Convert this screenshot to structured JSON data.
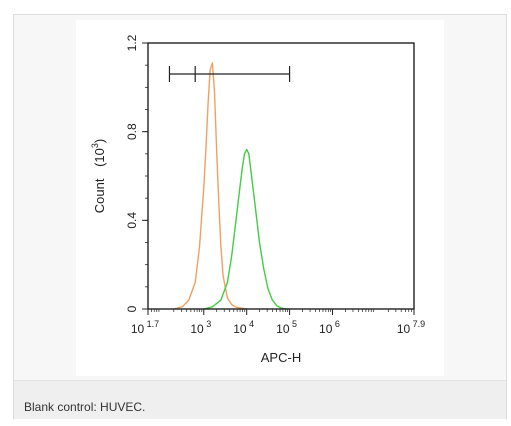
{
  "caption": "Blank control: HUVEC.",
  "chart_data": {
    "type": "line",
    "xlabel": "APC-H",
    "ylabel_main": "Count",
    "ylabel_unit": "(10",
    "ylabel_unit_exp": "3",
    "ylabel_unit_close": ")",
    "x_scale": "log10",
    "xlim_log10": [
      1.7,
      7.9
    ],
    "ylim": [
      0,
      1.2
    ],
    "x_ticks": [
      {
        "base": "10",
        "exp": "1.7",
        "log": 1.7
      },
      {
        "base": "10",
        "exp": "3",
        "log": 3
      },
      {
        "base": "10",
        "exp": "4",
        "log": 4
      },
      {
        "base": "10",
        "exp": "5",
        "log": 5
      },
      {
        "base": "10",
        "exp": "6",
        "log": 6
      },
      {
        "base": "10",
        "exp": "7.9",
        "log": 7.9
      }
    ],
    "y_ticks": [
      {
        "label": "0",
        "value": 0
      },
      {
        "label": "0.4",
        "value": 0.4
      },
      {
        "label": "0.8",
        "value": 0.8
      },
      {
        "label": "1.2",
        "value": 1.2
      }
    ],
    "gate": {
      "start_log10": 2.2,
      "mid_log10": 2.8,
      "end_log10": 5.0,
      "y": 1.06
    },
    "series": [
      {
        "color": "#f0a060",
        "x_log10": [
          2.3,
          2.5,
          2.65,
          2.8,
          2.9,
          3.0,
          3.05,
          3.1,
          3.15,
          3.2,
          3.25,
          3.3,
          3.35,
          3.4,
          3.45,
          3.55,
          3.65,
          3.75,
          3.9,
          4.0
        ],
        "y": [
          0,
          0.01,
          0.04,
          0.12,
          0.28,
          0.55,
          0.72,
          0.93,
          1.08,
          1.11,
          0.98,
          0.72,
          0.48,
          0.28,
          0.15,
          0.05,
          0.02,
          0.008,
          0.003,
          0
        ]
      },
      {
        "color": "#44cc44",
        "x_log10": [
          3.0,
          3.2,
          3.4,
          3.55,
          3.65,
          3.75,
          3.85,
          3.9,
          3.95,
          4.0,
          4.05,
          4.1,
          4.2,
          4.3,
          4.4,
          4.5,
          4.6,
          4.7,
          4.8,
          4.9,
          5.0
        ],
        "y": [
          0,
          0.01,
          0.04,
          0.12,
          0.24,
          0.4,
          0.56,
          0.64,
          0.7,
          0.72,
          0.7,
          0.62,
          0.46,
          0.3,
          0.18,
          0.09,
          0.04,
          0.015,
          0.005,
          0.001,
          0
        ]
      }
    ]
  }
}
